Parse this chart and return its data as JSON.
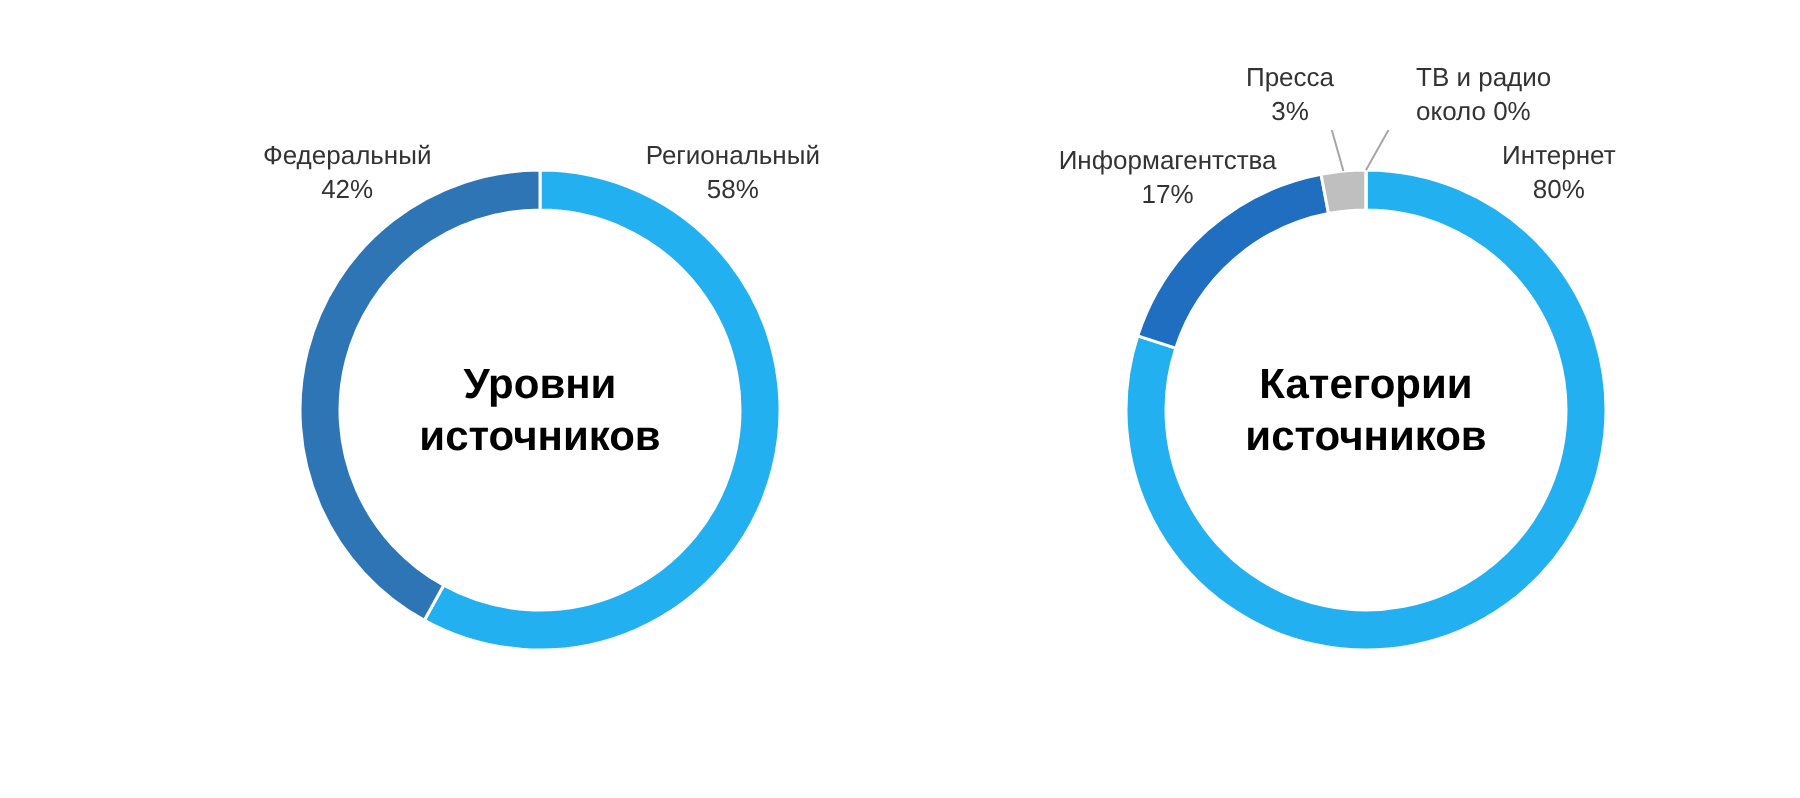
{
  "chart_data": [
    {
      "type": "donut",
      "title": "Уровни источников",
      "categories": [
        "Региональный",
        "Федеральный"
      ],
      "values": [
        58,
        42
      ],
      "colors": [
        "#22b0f0",
        "#2e75b6"
      ],
      "value_labels": [
        "58%",
        "42%"
      ]
    },
    {
      "type": "donut",
      "title": "Категории источников",
      "categories": [
        "Интернет",
        "Информагентства",
        "Пресса",
        "ТВ и радио"
      ],
      "values": [
        80,
        17,
        3,
        0
      ],
      "colors": [
        "#22b0f0",
        "#1f6ebf",
        "#bfbfbf",
        "#d9d9d9"
      ],
      "value_labels": [
        "80%",
        "17%",
        "3%",
        "около 0%"
      ]
    }
  ]
}
